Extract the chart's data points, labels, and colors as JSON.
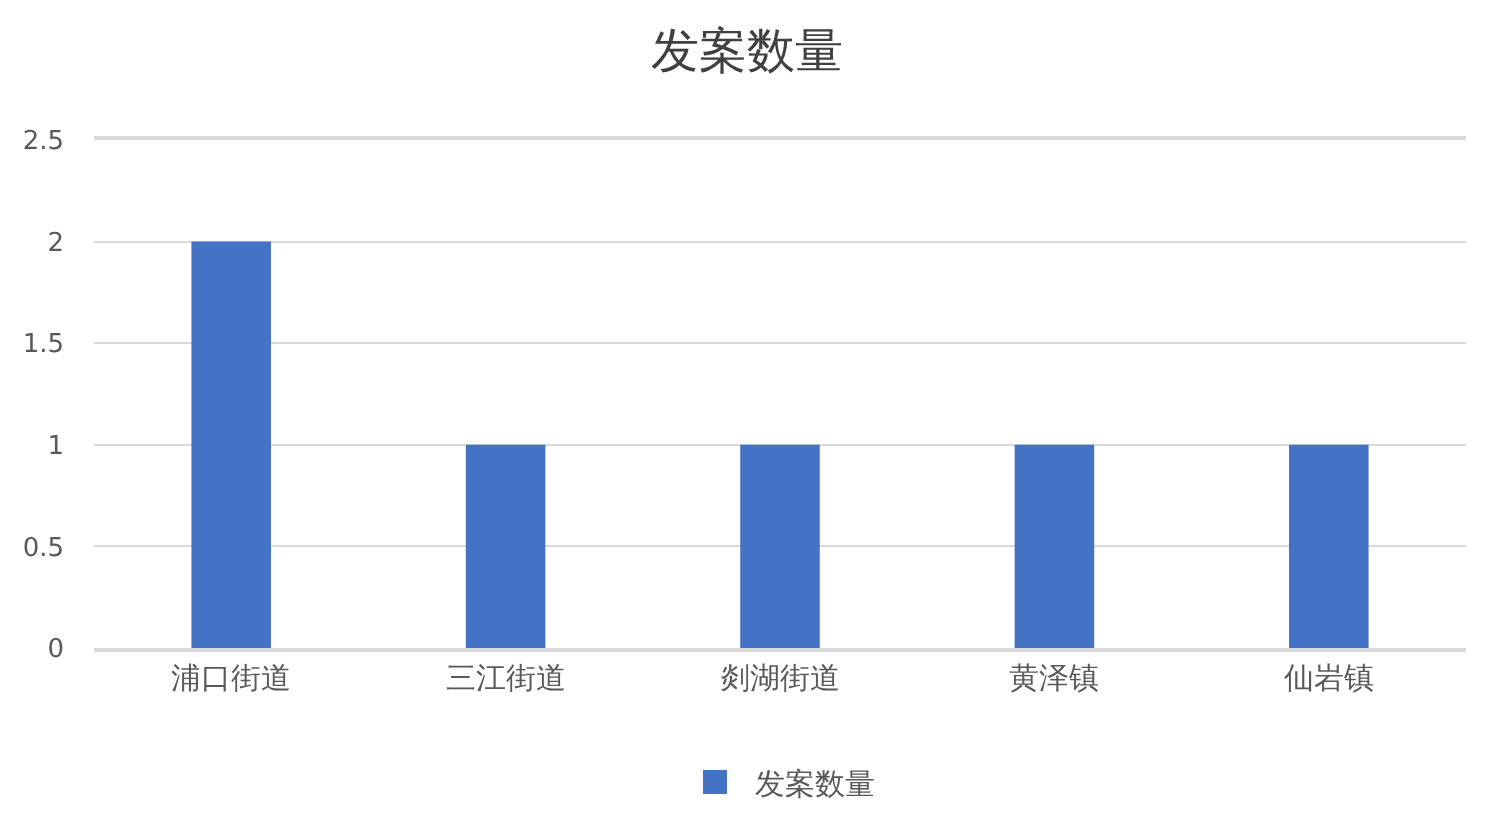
{
  "chart_data": {
    "type": "bar",
    "title": "发案数量",
    "categories": [
      "浦口街道",
      "三江街道",
      "剡湖街道",
      "黄泽镇",
      "仙岩镇"
    ],
    "series": [
      {
        "name": "发案数量",
        "color": "#4472c4",
        "values": [
          2,
          1,
          1,
          1,
          1
        ]
      }
    ],
    "ylim": [
      0,
      2.5
    ],
    "yticks": [
      0,
      0.5,
      1,
      1.5,
      2,
      2.5
    ],
    "grid": "y",
    "legend": "bottom"
  }
}
